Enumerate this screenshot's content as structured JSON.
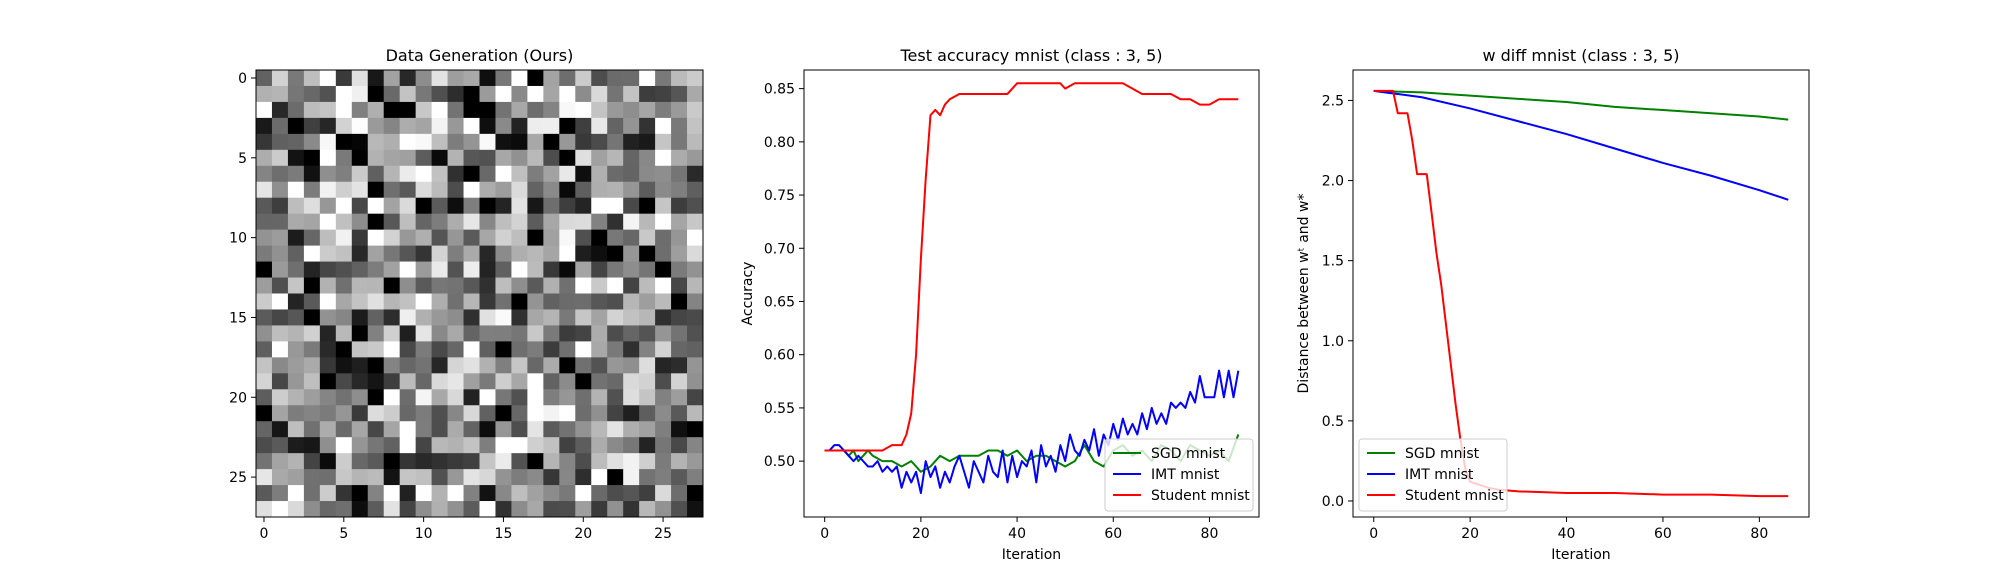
{
  "chart_data": [
    {
      "type": "heatmap",
      "title": "Data Generation (Ours)",
      "xticks": [
        0,
        5,
        10,
        15,
        20,
        25
      ],
      "yticks": [
        0,
        5,
        10,
        15,
        20,
        25
      ],
      "xlim": [
        -0.5,
        27.5
      ],
      "ylim": [
        27.5,
        -0.5
      ],
      "grid_size": [
        28,
        28
      ],
      "colormap": "gray",
      "seed": 7
    },
    {
      "type": "line",
      "title": "Test accuracy mnist (class : 3, 5)",
      "xlabel": "Iteration",
      "ylabel": "Accuracy",
      "xlim": [
        -4.3,
        90.3
      ],
      "ylim": [
        0.4475,
        0.8675
      ],
      "xticks": [
        0,
        20,
        40,
        60,
        80
      ],
      "yticks": [
        0.5,
        0.55,
        0.6,
        0.65,
        0.7,
        0.75,
        0.8,
        0.85
      ],
      "ytick_format": 2,
      "legend_position": "lower right",
      "series": [
        {
          "name": "SGD mnist",
          "color": "#008000",
          "x": [
            0,
            2,
            4,
            5,
            6,
            7,
            8,
            9,
            10,
            12,
            14,
            16,
            18,
            20,
            22,
            24,
            26,
            28,
            30,
            32,
            34,
            36,
            38,
            40,
            42,
            44,
            46,
            48,
            50,
            52,
            54,
            56,
            58,
            60,
            62,
            64,
            66,
            68,
            70,
            72,
            74,
            76,
            78,
            80,
            82,
            84,
            86
          ],
          "y": [
            0.51,
            0.51,
            0.51,
            0.505,
            0.51,
            0.5,
            0.505,
            0.51,
            0.505,
            0.5,
            0.5,
            0.495,
            0.5,
            0.49,
            0.495,
            0.505,
            0.5,
            0.505,
            0.505,
            0.505,
            0.51,
            0.51,
            0.505,
            0.51,
            0.5,
            0.505,
            0.505,
            0.5,
            0.495,
            0.5,
            0.515,
            0.5,
            0.495,
            0.51,
            0.515,
            0.505,
            0.51,
            0.5,
            0.515,
            0.51,
            0.5,
            0.515,
            0.51,
            0.505,
            0.51,
            0.5,
            0.525
          ]
        },
        {
          "name": "IMT mnist",
          "color": "#0000ff",
          "x": [
            0,
            1,
            2,
            3,
            4,
            5,
            6,
            7,
            8,
            9,
            10,
            11,
            12,
            13,
            14,
            15,
            16,
            17,
            18,
            19,
            20,
            21,
            22,
            23,
            24,
            25,
            26,
            27,
            28,
            29,
            30,
            31,
            32,
            33,
            34,
            35,
            36,
            37,
            38,
            39,
            40,
            41,
            42,
            43,
            44,
            45,
            46,
            47,
            48,
            49,
            50,
            51,
            52,
            53,
            54,
            55,
            56,
            57,
            58,
            59,
            60,
            61,
            62,
            63,
            64,
            65,
            66,
            67,
            68,
            69,
            70,
            71,
            72,
            73,
            74,
            75,
            76,
            77,
            78,
            79,
            80,
            81,
            82,
            83,
            84,
            85,
            86
          ],
          "y": [
            0.51,
            0.51,
            0.515,
            0.515,
            0.51,
            0.505,
            0.5,
            0.505,
            0.5,
            0.495,
            0.495,
            0.5,
            0.49,
            0.495,
            0.49,
            0.495,
            0.475,
            0.49,
            0.48,
            0.49,
            0.47,
            0.5,
            0.485,
            0.495,
            0.475,
            0.49,
            0.48,
            0.495,
            0.505,
            0.49,
            0.475,
            0.5,
            0.49,
            0.48,
            0.505,
            0.49,
            0.485,
            0.51,
            0.48,
            0.505,
            0.485,
            0.5,
            0.495,
            0.51,
            0.48,
            0.515,
            0.495,
            0.505,
            0.49,
            0.515,
            0.5,
            0.525,
            0.51,
            0.505,
            0.52,
            0.51,
            0.53,
            0.505,
            0.525,
            0.515,
            0.535,
            0.52,
            0.54,
            0.525,
            0.535,
            0.525,
            0.545,
            0.53,
            0.55,
            0.535,
            0.545,
            0.535,
            0.555,
            0.55,
            0.555,
            0.55,
            0.565,
            0.555,
            0.58,
            0.56,
            0.56,
            0.56,
            0.585,
            0.56,
            0.585,
            0.56,
            0.585
          ]
        },
        {
          "name": "Student mnist",
          "color": "#ff0000",
          "x": [
            0,
            5,
            10,
            12,
            14,
            16,
            17,
            18,
            19,
            20,
            21,
            22,
            23,
            24,
            25,
            26,
            28,
            30,
            32,
            34,
            36,
            38,
            40,
            42,
            44,
            46,
            48,
            49,
            50,
            52,
            56,
            58,
            60,
            62,
            64,
            66,
            70,
            72,
            74,
            76,
            78,
            80,
            82,
            84,
            86
          ],
          "y": [
            0.51,
            0.51,
            0.51,
            0.51,
            0.515,
            0.515,
            0.525,
            0.545,
            0.6,
            0.69,
            0.765,
            0.825,
            0.83,
            0.825,
            0.835,
            0.84,
            0.845,
            0.845,
            0.845,
            0.845,
            0.845,
            0.845,
            0.855,
            0.855,
            0.855,
            0.855,
            0.855,
            0.855,
            0.85,
            0.855,
            0.855,
            0.855,
            0.855,
            0.855,
            0.85,
            0.845,
            0.845,
            0.845,
            0.84,
            0.84,
            0.835,
            0.835,
            0.84,
            0.84,
            0.84
          ]
        }
      ]
    },
    {
      "type": "line",
      "title": "w diff mnist (class : 3, 5)",
      "xlabel": "Iteration",
      "ylabel": "Distance between wᵗ and w*",
      "xlim": [
        -4.3,
        90.3
      ],
      "ylim": [
        -0.1,
        2.69
      ],
      "xticks": [
        0,
        20,
        40,
        60,
        80
      ],
      "yticks": [
        0.0,
        0.5,
        1.0,
        1.5,
        2.0,
        2.5
      ],
      "ytick_format": 1,
      "legend_position": "lower left",
      "series": [
        {
          "name": "SGD mnist",
          "color": "#008000",
          "x": [
            0,
            10,
            20,
            30,
            40,
            50,
            60,
            70,
            80,
            86
          ],
          "y": [
            2.56,
            2.55,
            2.53,
            2.51,
            2.49,
            2.46,
            2.44,
            2.42,
            2.4,
            2.38
          ]
        },
        {
          "name": "IMT mnist",
          "color": "#0000ff",
          "x": [
            0,
            10,
            20,
            30,
            40,
            50,
            60,
            70,
            80,
            86
          ],
          "y": [
            2.56,
            2.52,
            2.45,
            2.37,
            2.29,
            2.2,
            2.11,
            2.03,
            1.94,
            1.88
          ]
        },
        {
          "name": "Student mnist",
          "color": "#ff0000",
          "x": [
            0,
            4,
            5,
            6,
            7,
            8,
            9,
            10,
            11,
            12,
            13,
            14,
            15,
            16,
            17,
            18,
            19,
            20,
            22,
            24,
            26,
            30,
            40,
            50,
            60,
            70,
            80,
            86
          ],
          "y": [
            2.56,
            2.56,
            2.42,
            2.42,
            2.42,
            2.25,
            2.04,
            2.04,
            2.04,
            1.8,
            1.55,
            1.35,
            1.1,
            0.85,
            0.6,
            0.38,
            0.2,
            0.12,
            0.1,
            0.08,
            0.07,
            0.06,
            0.05,
            0.05,
            0.04,
            0.04,
            0.03,
            0.03
          ]
        }
      ]
    }
  ]
}
